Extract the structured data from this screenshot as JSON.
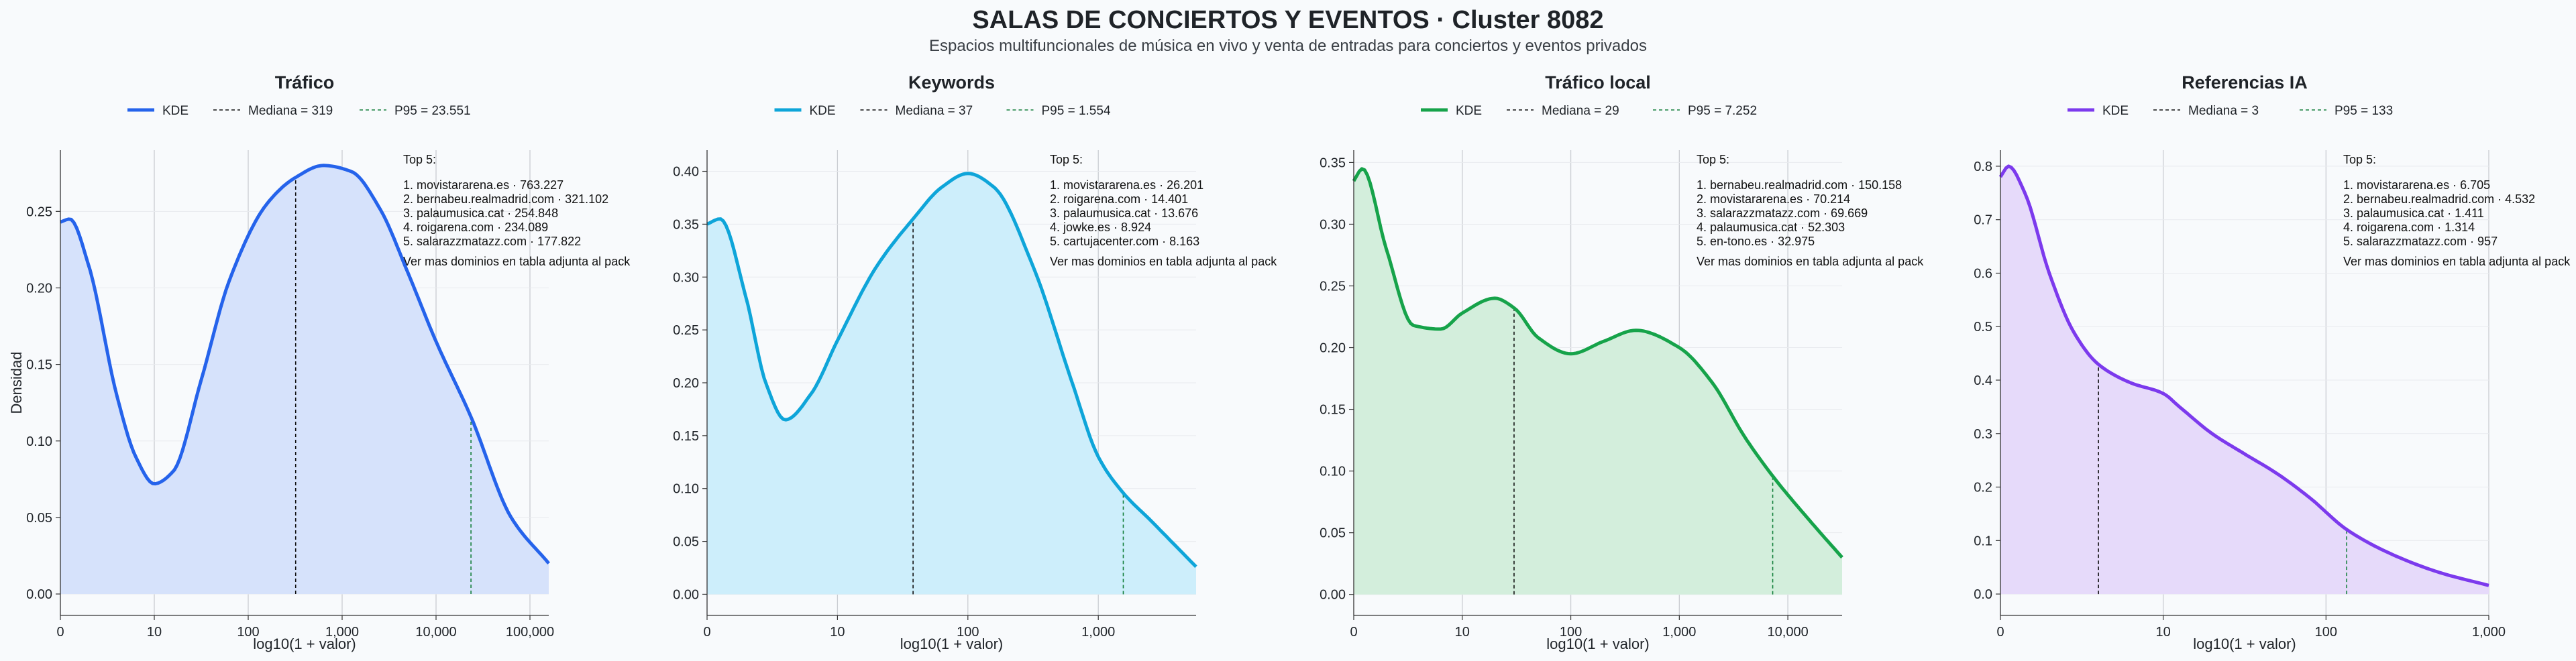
{
  "title": "SALAS DE CONCIERTOS Y EVENTOS · Cluster 8082",
  "subtitle": "Espacios multifuncionales de música en vivo y venta de entradas para conciertos y eventos privados",
  "chart_data": [
    {
      "type": "area",
      "title": "Tráfico",
      "color": "#2563eb",
      "fill": "#d6e2fb",
      "xlabel": "log10(1 + valor)",
      "ylabel": "Densidad",
      "x_scale": "log10(1+x)",
      "xlim": [
        0,
        5.2
      ],
      "ylim": [
        -0.014,
        0.29
      ],
      "x_ticks": [
        0,
        1,
        2,
        3,
        4,
        5
      ],
      "x_tick_labels": [
        "0",
        "10",
        "100",
        "1,000",
        "10,000",
        "100,000"
      ],
      "y_ticks": [
        0,
        0.05,
        0.1,
        0.15,
        0.2,
        0.25
      ],
      "y_tick_labels": [
        "0.00",
        "0.05",
        "0.10",
        "0.15",
        "0.20",
        "0.25"
      ],
      "legend": [
        "KDE",
        "Mediana = 319",
        "P95 = 23.551"
      ],
      "median": 319,
      "p95": 23551,
      "kde": {
        "x": [
          0,
          0.1,
          0.3,
          0.6,
          0.8,
          1.0,
          1.2,
          1.5,
          1.8,
          2.2,
          2.5,
          2.8,
          3.1,
          3.4,
          3.7,
          4.0,
          4.37,
          4.8,
          5.2
        ],
        "density": [
          0.243,
          0.245,
          0.215,
          0.13,
          0.09,
          0.072,
          0.08,
          0.14,
          0.205,
          0.255,
          0.272,
          0.28,
          0.276,
          0.252,
          0.21,
          0.165,
          0.116,
          0.05,
          0.02
        ]
      },
      "top5_title": "Top 5:",
      "top5": [
        "1. movistararena.es · 763.227",
        "2. bernabeu.realmadrid.com · 321.102",
        "3. palaumusica.cat · 254.848",
        "4. roigarena.com · 234.089",
        "5. salarazzmatazz.com · 177.822"
      ],
      "note": "Ver mas dominios en tabla adjunta al pack"
    },
    {
      "type": "area",
      "title": "Keywords",
      "color": "#0ea5d9",
      "fill": "#cdeefb",
      "xlabel": "log10(1 + valor)",
      "x_scale": "log10(1+x)",
      "xlim": [
        0,
        3.75
      ],
      "ylim": [
        -0.02,
        0.42
      ],
      "x_ticks": [
        0,
        1,
        2,
        3
      ],
      "x_tick_labels": [
        "0",
        "10",
        "100",
        "1,000"
      ],
      "y_ticks": [
        0,
        0.05,
        0.1,
        0.15,
        0.2,
        0.25,
        0.3,
        0.35,
        0.4
      ],
      "y_tick_labels": [
        "0.00",
        "0.05",
        "0.10",
        "0.15",
        "0.20",
        "0.25",
        "0.30",
        "0.35",
        "0.40"
      ],
      "legend": [
        "KDE",
        "Mediana = 37",
        "P95 = 1.554"
      ],
      "median": 37,
      "p95": 1554,
      "kde": {
        "x": [
          0,
          0.1,
          0.3,
          0.45,
          0.6,
          0.8,
          1.0,
          1.3,
          1.58,
          1.8,
          2.0,
          2.2,
          2.5,
          2.8,
          3.0,
          3.19,
          3.4,
          3.75
        ],
        "density": [
          0.35,
          0.355,
          0.28,
          0.2,
          0.165,
          0.19,
          0.24,
          0.31,
          0.355,
          0.385,
          0.398,
          0.385,
          0.31,
          0.2,
          0.13,
          0.096,
          0.07,
          0.026
        ]
      },
      "top5_title": "Top 5:",
      "top5": [
        "1. movistararena.es · 26.201",
        "2. roigarena.com · 14.401",
        "3. palaumusica.cat · 13.676",
        "4. jowke.es · 8.924",
        "5. cartujacenter.com · 8.163"
      ],
      "note": "Ver mas dominios en tabla adjunta al pack"
    },
    {
      "type": "area",
      "title": "Tráfico local",
      "color": "#16a34a",
      "fill": "#d3eedc",
      "xlabel": "log10(1 + valor)",
      "x_scale": "log10(1+x)",
      "xlim": [
        0,
        4.5
      ],
      "ylim": [
        -0.017,
        0.36
      ],
      "x_ticks": [
        0,
        1,
        2,
        3,
        4
      ],
      "x_tick_labels": [
        "0",
        "10",
        "100",
        "1,000",
        "10,000"
      ],
      "y_ticks": [
        0,
        0.05,
        0.1,
        0.15,
        0.2,
        0.25,
        0.3,
        0.35
      ],
      "y_tick_labels": [
        "0.00",
        "0.05",
        "0.10",
        "0.15",
        "0.20",
        "0.25",
        "0.30",
        "0.35"
      ],
      "legend": [
        "KDE",
        "Mediana = 29",
        "P95 = 7.252"
      ],
      "median": 29,
      "p95": 7252,
      "kde": {
        "x": [
          0,
          0.08,
          0.3,
          0.55,
          0.8,
          1.0,
          1.3,
          1.48,
          1.7,
          2.0,
          2.3,
          2.6,
          3.0,
          3.3,
          3.6,
          3.86,
          4.2,
          4.5
        ],
        "density": [
          0.335,
          0.345,
          0.28,
          0.218,
          0.215,
          0.228,
          0.24,
          0.232,
          0.208,
          0.195,
          0.205,
          0.214,
          0.2,
          0.172,
          0.128,
          0.096,
          0.06,
          0.03
        ]
      },
      "top5_title": "Top 5:",
      "top5": [
        "1. bernabeu.realmadrid.com · 150.158",
        "2. movistararena.es · 70.214",
        "3. salarazzmatazz.com · 69.669",
        "4. palaumusica.cat · 52.303",
        "5. en-tono.es · 32.975"
      ],
      "note": "Ver mas dominios en tabla adjunta al pack"
    },
    {
      "type": "area",
      "title": "Referencias IA",
      "color": "#7c3aed",
      "fill": "#e6dafa",
      "xlabel": "log10(1 + valor)",
      "x_scale": "log10(1+x)",
      "xlim": [
        0,
        3.0
      ],
      "ylim": [
        -0.04,
        0.83
      ],
      "x_ticks": [
        0,
        1,
        2,
        3
      ],
      "x_tick_labels": [
        "0",
        "10",
        "100",
        "1,000"
      ],
      "y_ticks": [
        0,
        0.1,
        0.2,
        0.3,
        0.4,
        0.5,
        0.6,
        0.7,
        0.8
      ],
      "y_tick_labels": [
        "0.0",
        "0.1",
        "0.2",
        "0.3",
        "0.4",
        "0.5",
        "0.6",
        "0.7",
        "0.8"
      ],
      "legend": [
        "KDE",
        "Mediana = 3",
        "P95 = 133"
      ],
      "median": 3,
      "p95": 133,
      "kde": {
        "x": [
          0,
          0.05,
          0.15,
          0.3,
          0.45,
          0.6,
          0.8,
          1.0,
          1.1,
          1.3,
          1.5,
          1.7,
          1.9,
          2.13,
          2.4,
          2.7,
          3.0
        ],
        "density": [
          0.78,
          0.8,
          0.75,
          0.6,
          0.49,
          0.43,
          0.395,
          0.375,
          0.35,
          0.3,
          0.262,
          0.225,
          0.18,
          0.12,
          0.075,
          0.04,
          0.016
        ]
      },
      "top5_title": "Top 5:",
      "top5": [
        "1. movistararena.es · 6.705",
        "2. bernabeu.realmadrid.com · 4.532",
        "3. palaumusica.cat · 1.411",
        "4. roigarena.com · 1.314",
        "5. salarazzmatazz.com · 957"
      ],
      "note": "Ver mas dominios en tabla adjunta al pack"
    }
  ]
}
